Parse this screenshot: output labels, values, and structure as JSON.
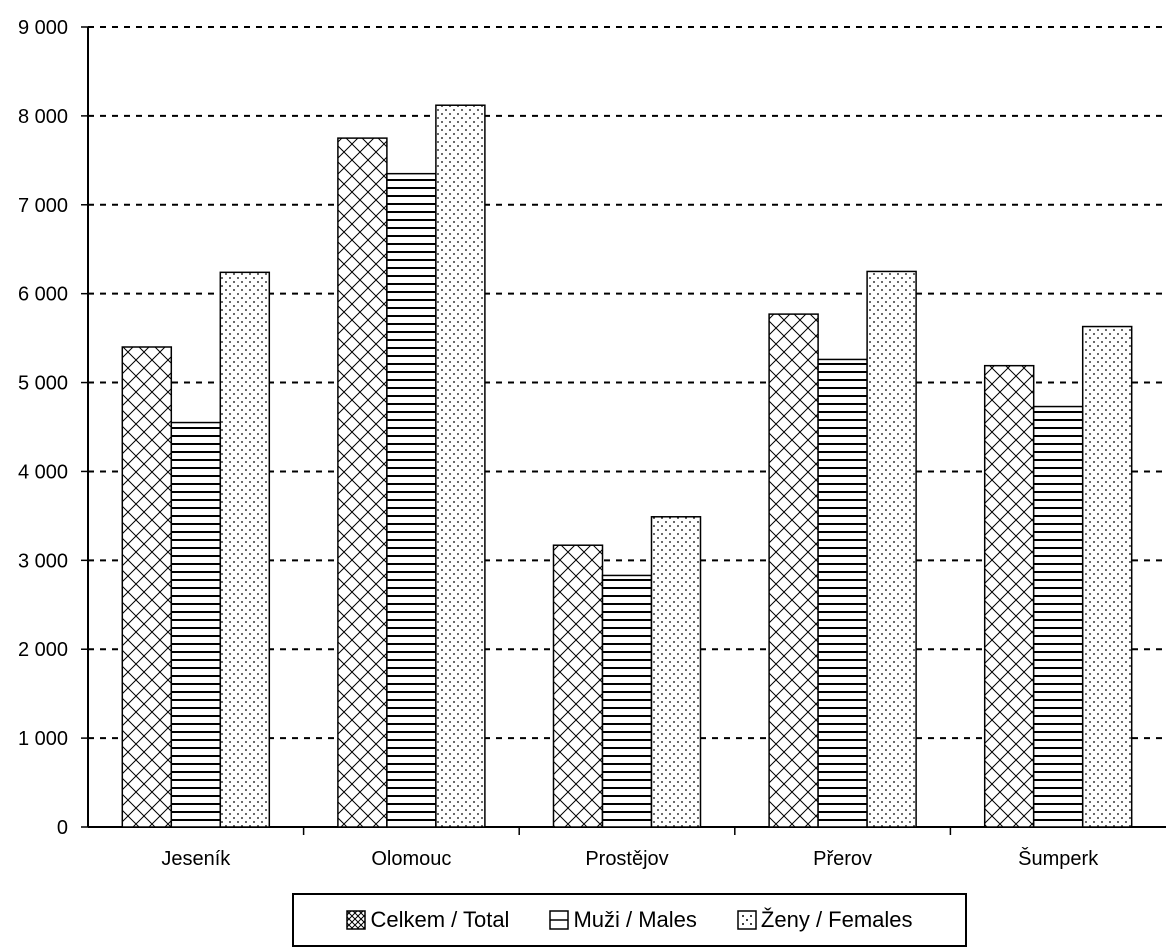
{
  "chart_data": {
    "type": "bar",
    "categories": [
      "Jeseník",
      "Olomouc",
      "Prostějov",
      "Přerov",
      "Šumperk"
    ],
    "series": [
      {
        "name": "Celkem / Total",
        "pattern": "crosshatch",
        "values": [
          5400,
          7750,
          3170,
          5770,
          5190
        ]
      },
      {
        "name": "Muži / Males",
        "pattern": "horizontal-lines",
        "values": [
          4550,
          7350,
          2830,
          5260,
          4730
        ]
      },
      {
        "name": "Ženy / Females",
        "pattern": "dots",
        "values": [
          6240,
          8120,
          3490,
          6250,
          5630
        ]
      }
    ],
    "yticks": [
      "0",
      "1 000",
      "2 000",
      "3 000",
      "4 000",
      "5 000",
      "6 000",
      "7 000",
      "8 000",
      "9 000"
    ],
    "ylim": [
      0,
      9000
    ],
    "grid": true,
    "legend_position": "bottom",
    "colors": {
      "stroke": "#000000",
      "fill": "#ffffff"
    }
  }
}
